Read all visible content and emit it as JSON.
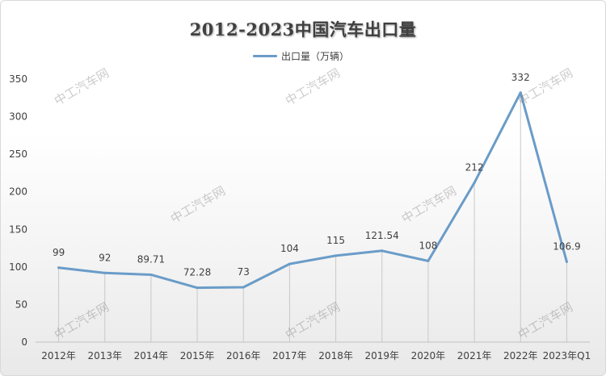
{
  "chart_data": {
    "type": "line",
    "title": "2012-2023中国汽车出口量",
    "categories": [
      "2012年",
      "2013年",
      "2014年",
      "2015年",
      "2016年",
      "2017年",
      "2018年",
      "2019年",
      "2020年",
      "2021年",
      "2022年",
      "2023年Q1"
    ],
    "series": [
      {
        "name": "出口量（万辆）",
        "values": [
          99,
          92,
          89.71,
          72.28,
          73,
          104,
          115,
          121.54,
          108,
          212,
          332,
          106.9
        ],
        "labels": [
          "99",
          "92",
          "89.71",
          "72.28",
          "73",
          "104",
          "115",
          "121.54",
          "108",
          "212",
          "332",
          "106.9"
        ],
        "color": "#6a9cc8"
      }
    ],
    "ylim": [
      0,
      350
    ],
    "yticks": [
      0,
      50,
      100,
      150,
      200,
      250,
      300,
      350
    ],
    "grid": false,
    "drop_lines": true,
    "legend_position": "top-center"
  },
  "watermark": {
    "text": "中工汽车网",
    "color": "#9a9a9a"
  }
}
